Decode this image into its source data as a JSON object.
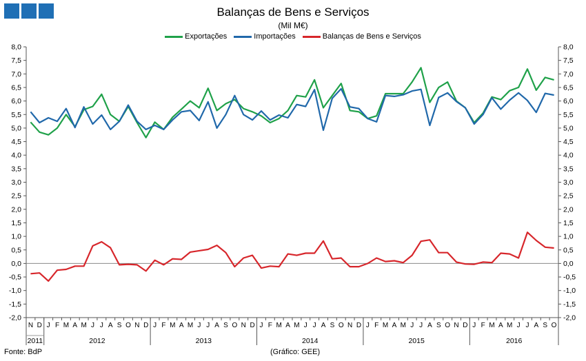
{
  "title": "Balanças de Bens e Serviços",
  "subtitle": "(Mil M€)",
  "source": "Fonte: BdP",
  "credit": "(Gráfico: GEE)",
  "colors": {
    "logo": "#1f6fb5"
  },
  "chart_data": {
    "type": "line",
    "ylim": [
      -2.0,
      8.0
    ],
    "ytick_step": 0.5,
    "ytick_labels": [
      "-2,0",
      "-1,5",
      "-1,0",
      "-0,5",
      "0,0",
      "0,5",
      "1,0",
      "1,5",
      "2,0",
      "2,5",
      "3,0",
      "3,5",
      "4,0",
      "4,5",
      "5,0",
      "5,5",
      "6,0",
      "6,5",
      "7,0",
      "7,5",
      "8,0"
    ],
    "x": [
      "N",
      "D",
      "J",
      "F",
      "M",
      "A",
      "M",
      "J",
      "J",
      "A",
      "S",
      "O",
      "N",
      "D",
      "J",
      "F",
      "M",
      "A",
      "M",
      "J",
      "J",
      "A",
      "S",
      "O",
      "N",
      "D",
      "J",
      "F",
      "M",
      "A",
      "M",
      "J",
      "J",
      "A",
      "S",
      "O",
      "N",
      "D",
      "J",
      "F",
      "M",
      "A",
      "M",
      "J",
      "J",
      "A",
      "S",
      "O",
      "N",
      "D",
      "J",
      "F",
      "M",
      "A",
      "M",
      "J",
      "J",
      "A",
      "S",
      "O"
    ],
    "years": [
      {
        "label": "2011",
        "start": 0,
        "end": 1
      },
      {
        "label": "2012",
        "start": 2,
        "end": 13
      },
      {
        "label": "2013",
        "start": 14,
        "end": 25
      },
      {
        "label": "2014",
        "start": 26,
        "end": 37
      },
      {
        "label": "2015",
        "start": 38,
        "end": 49
      },
      {
        "label": "2016",
        "start": 50,
        "end": 59
      }
    ],
    "grid": false,
    "legend": "top-center",
    "series": [
      {
        "name": "Exportações",
        "color": "#1fa149",
        "values": [
          5.22,
          4.85,
          4.75,
          5.0,
          5.5,
          5.05,
          5.68,
          5.8,
          6.25,
          5.5,
          5.25,
          5.8,
          5.2,
          4.65,
          5.22,
          4.95,
          5.4,
          5.7,
          6.0,
          5.75,
          6.47,
          5.65,
          5.9,
          6.05,
          5.72,
          5.6,
          5.45,
          5.2,
          5.35,
          5.65,
          6.2,
          6.15,
          6.78,
          5.75,
          6.2,
          6.65,
          5.65,
          5.6,
          5.35,
          5.45,
          6.27,
          6.27,
          6.27,
          6.7,
          7.23,
          5.95,
          6.5,
          6.7,
          6.0,
          5.75,
          5.2,
          5.55,
          6.15,
          6.05,
          6.38,
          6.5,
          7.18,
          6.4,
          6.87,
          6.78
        ]
      },
      {
        "name": "Importações",
        "color": "#2068aa",
        "values": [
          5.6,
          5.2,
          5.38,
          5.25,
          5.72,
          5.02,
          5.78,
          5.15,
          5.48,
          4.95,
          5.25,
          5.85,
          5.25,
          4.95,
          5.1,
          4.95,
          5.3,
          5.6,
          5.65,
          5.28,
          5.97,
          5.0,
          5.5,
          6.2,
          5.5,
          5.3,
          5.63,
          5.3,
          5.48,
          5.38,
          5.87,
          5.8,
          6.42,
          4.92,
          6.1,
          6.45,
          5.78,
          5.72,
          5.35,
          5.23,
          6.2,
          6.17,
          6.23,
          6.37,
          6.43,
          5.1,
          6.13,
          6.3,
          5.98,
          5.75,
          5.15,
          5.5,
          6.12,
          5.7,
          6.03,
          6.3,
          6.02,
          5.58,
          6.28,
          6.22
        ]
      },
      {
        "name": "Balanças de Bens e Serviços",
        "color": "#d7262b",
        "values": [
          -0.38,
          -0.35,
          -0.65,
          -0.25,
          -0.22,
          -0.1,
          -0.1,
          0.65,
          0.8,
          0.58,
          -0.05,
          -0.03,
          -0.05,
          -0.28,
          0.12,
          -0.05,
          0.17,
          0.15,
          0.42,
          0.47,
          0.52,
          0.67,
          0.4,
          -0.12,
          0.2,
          0.3,
          -0.17,
          -0.1,
          -0.12,
          0.35,
          0.3,
          0.38,
          0.38,
          0.83,
          0.17,
          0.2,
          -0.12,
          -0.12,
          0.0,
          0.2,
          0.07,
          0.1,
          0.03,
          0.3,
          0.82,
          0.87,
          0.4,
          0.4,
          0.05,
          -0.02,
          -0.03,
          0.05,
          0.03,
          0.38,
          0.35,
          0.2,
          1.15,
          0.85,
          0.6,
          0.57
        ]
      }
    ]
  }
}
